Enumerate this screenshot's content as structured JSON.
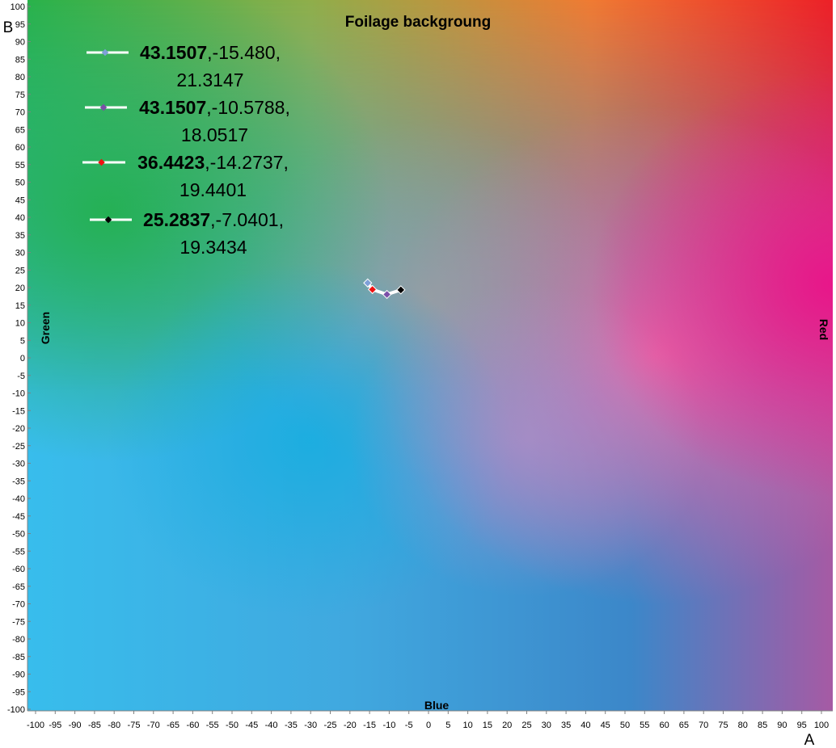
{
  "chart_data": {
    "type": "scatter",
    "title": "Foilage  backgroung",
    "xlabel": "A",
    "ylabel": "B",
    "xlim": [
      -100,
      100
    ],
    "ylim": [
      -100,
      100
    ],
    "x_ticks": [
      -100,
      -95,
      -90,
      -85,
      -80,
      -75,
      -70,
      -65,
      -60,
      -55,
      -50,
      -45,
      -40,
      -35,
      -30,
      -25,
      -20,
      -15,
      -10,
      -5,
      0,
      5,
      10,
      15,
      20,
      25,
      30,
      35,
      40,
      45,
      50,
      55,
      60,
      65,
      70,
      75,
      80,
      85,
      90,
      95,
      100
    ],
    "y_ticks": [
      -100,
      -95,
      -90,
      -85,
      -80,
      -75,
      -70,
      -65,
      -60,
      -55,
      -50,
      -45,
      -40,
      -35,
      -30,
      -25,
      -20,
      -15,
      -10,
      -5,
      0,
      5,
      10,
      15,
      20,
      25,
      30,
      35,
      40,
      45,
      50,
      55,
      60,
      65,
      70,
      75,
      80,
      85,
      90,
      95,
      100
    ],
    "grid": false,
    "background": "CIELAB a*b* color plane gradient",
    "annotations": {
      "green": "Green",
      "blue": "Blue",
      "red": "Red"
    },
    "legend_position": "top-left",
    "series": [
      {
        "label_l": "43.1507",
        "label_ab": ",-15.480,",
        "label_b": "21.3147",
        "marker_color": "#7fa0d8",
        "x": -15.48,
        "y": 21.3147
      },
      {
        "label_l": "43.1507",
        "label_ab": ",-10.5788,",
        "label_b": "18.0517",
        "marker_color": "#7b4fa8",
        "x": -10.5788,
        "y": 18.0517
      },
      {
        "label_l": "36.4423",
        "label_ab": ",-14.2737,",
        "label_b": "19.4401",
        "marker_color": "#ee1111",
        "x": -14.2737,
        "y": 19.4401
      },
      {
        "label_l": "25.2837",
        "label_ab": ",-7.0401,",
        "label_b": "19.3434",
        "marker_color": "#000000",
        "x": -7.0401,
        "y": 19.3434
      }
    ]
  }
}
